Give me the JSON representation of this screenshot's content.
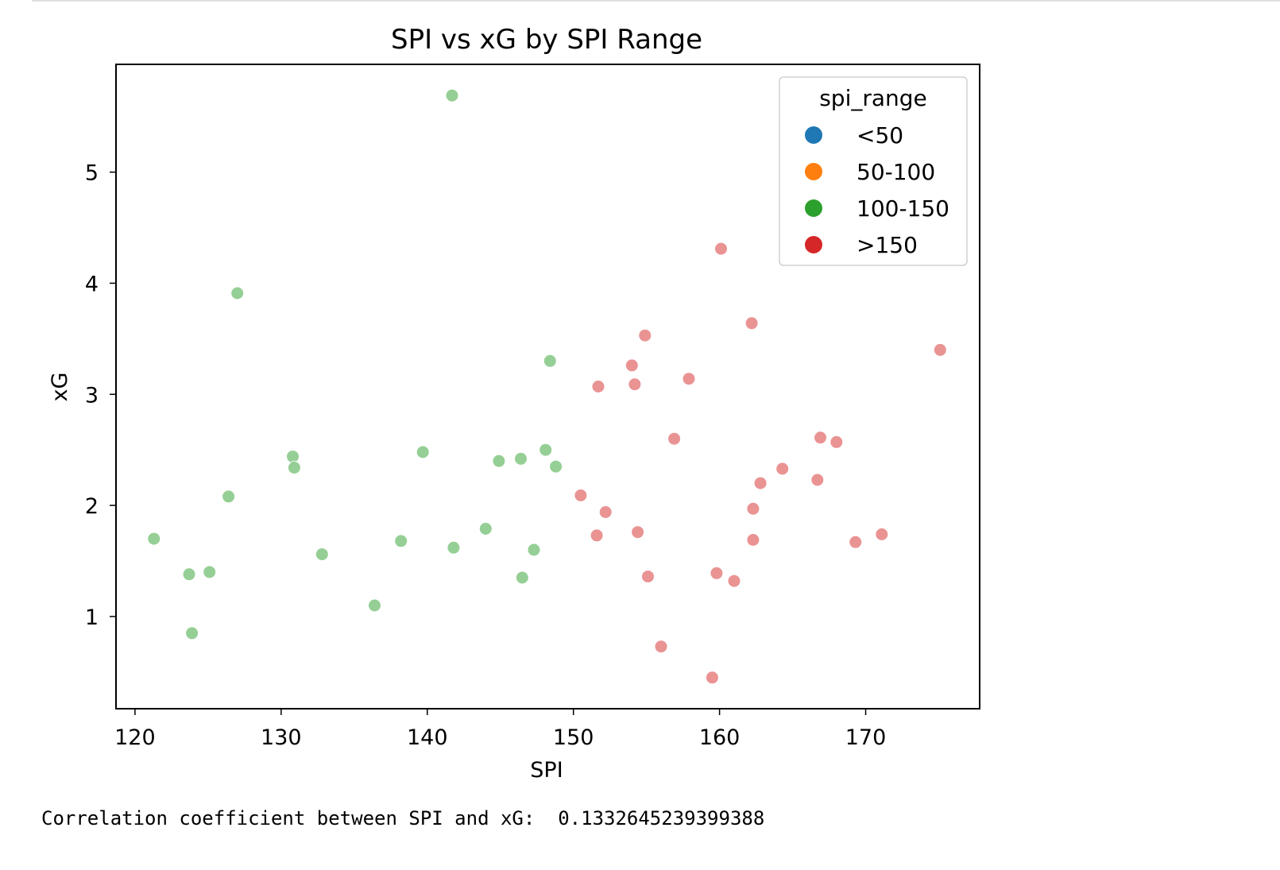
{
  "output": {
    "text": "Correlation coefficient between SPI and xG:  0.1332645239399388"
  },
  "chart_data": {
    "type": "scatter",
    "title": "SPI vs xG by SPI Range",
    "xlabel": "SPI",
    "ylabel": "xG",
    "xlim": [
      118.7,
      177.8
    ],
    "ylim": [
      0.17,
      5.97
    ],
    "xticks": [
      120,
      130,
      140,
      150,
      160,
      170
    ],
    "yticks": [
      1,
      2,
      3,
      4,
      5
    ],
    "grid": false,
    "legend": {
      "title": "spi_range",
      "placement": "top-right",
      "entries": [
        {
          "label": "<50",
          "color": "#1f77b4"
        },
        {
          "label": "50-100",
          "color": "#ff7f0e"
        },
        {
          "label": "100-150",
          "color": "#2ca02c"
        },
        {
          "label": ">150",
          "color": "#d62728"
        }
      ]
    },
    "series": [
      {
        "name": "<50",
        "color": "#1f77b4",
        "points": []
      },
      {
        "name": "50-100",
        "color": "#ff7f0e",
        "points": []
      },
      {
        "name": "100-150",
        "color": "#2ca02c",
        "points": [
          [
            121.3,
            1.7
          ],
          [
            123.7,
            1.38
          ],
          [
            125.1,
            1.4
          ],
          [
            123.9,
            0.85
          ],
          [
            126.4,
            2.08
          ],
          [
            127.0,
            3.91
          ],
          [
            130.8,
            2.44
          ],
          [
            130.9,
            2.34
          ],
          [
            132.8,
            1.56
          ],
          [
            136.4,
            1.1
          ],
          [
            138.2,
            1.68
          ],
          [
            139.7,
            2.48
          ],
          [
            141.7,
            5.69
          ],
          [
            141.8,
            1.62
          ],
          [
            144.0,
            1.79
          ],
          [
            144.9,
            2.4
          ],
          [
            146.4,
            2.42
          ],
          [
            146.5,
            1.35
          ],
          [
            147.3,
            1.6
          ],
          [
            148.1,
            2.5
          ],
          [
            148.4,
            3.3
          ],
          [
            148.8,
            2.35
          ]
        ]
      },
      {
        "name": ">150",
        "color": "#d62728",
        "points": [
          [
            150.5,
            2.09
          ],
          [
            151.6,
            1.73
          ],
          [
            151.7,
            3.07
          ],
          [
            152.2,
            1.94
          ],
          [
            154.0,
            3.26
          ],
          [
            154.2,
            3.09
          ],
          [
            154.4,
            1.76
          ],
          [
            154.9,
            3.53
          ],
          [
            155.1,
            1.36
          ],
          [
            156.0,
            0.73
          ],
          [
            156.9,
            2.6
          ],
          [
            157.9,
            3.14
          ],
          [
            159.5,
            0.45
          ],
          [
            159.8,
            1.39
          ],
          [
            160.1,
            4.31
          ],
          [
            161.0,
            1.32
          ],
          [
            162.2,
            3.64
          ],
          [
            162.3,
            1.69
          ],
          [
            162.3,
            1.97
          ],
          [
            162.8,
            2.2
          ],
          [
            164.3,
            2.33
          ],
          [
            166.7,
            2.23
          ],
          [
            166.9,
            2.61
          ],
          [
            168.0,
            2.57
          ],
          [
            169.3,
            1.67
          ],
          [
            171.1,
            1.74
          ],
          [
            175.1,
            3.4
          ]
        ]
      }
    ]
  }
}
